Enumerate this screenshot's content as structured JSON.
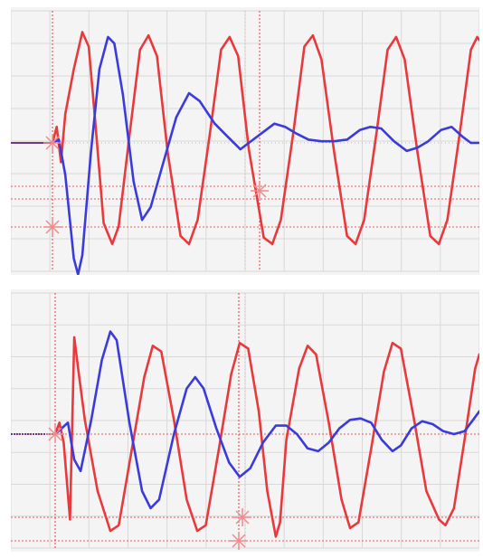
{
  "chart_data": [
    {
      "type": "line",
      "title": "",
      "xlabel": "",
      "ylabel": "",
      "xlim": [
        0,
        10
      ],
      "ylim": [
        -4,
        4
      ],
      "grid": true,
      "legend": "none",
      "series": [
        {
          "color": "#e8393c",
          "points": [
            [
              0,
              0
            ],
            [
              0.1,
              0.5
            ],
            [
              0.2,
              -0.6
            ],
            [
              0.3,
              0.9
            ],
            [
              0.5,
              2.3
            ],
            [
              0.7,
              3.45
            ],
            [
              0.85,
              3.0
            ],
            [
              1.0,
              0.7
            ],
            [
              1.2,
              -2.5
            ],
            [
              1.4,
              -3.15
            ],
            [
              1.55,
              -2.6
            ],
            [
              1.8,
              0.2
            ],
            [
              2.05,
              2.9
            ],
            [
              2.25,
              3.35
            ],
            [
              2.45,
              2.7
            ],
            [
              2.7,
              -0.3
            ],
            [
              3.0,
              -2.9
            ],
            [
              3.2,
              -3.15
            ],
            [
              3.4,
              -2.4
            ],
            [
              3.7,
              0.4
            ],
            [
              3.95,
              2.9
            ],
            [
              4.15,
              3.3
            ],
            [
              4.35,
              2.7
            ],
            [
              4.6,
              -0.2
            ],
            [
              4.95,
              -2.95
            ],
            [
              5.15,
              -3.15
            ],
            [
              5.35,
              -2.4
            ],
            [
              5.65,
              0.4
            ],
            [
              5.9,
              3.0
            ],
            [
              6.1,
              3.35
            ],
            [
              6.3,
              2.6
            ],
            [
              6.6,
              -0.3
            ],
            [
              6.9,
              -2.9
            ],
            [
              7.1,
              -3.15
            ],
            [
              7.3,
              -2.4
            ],
            [
              7.6,
              0.4
            ],
            [
              7.85,
              2.9
            ],
            [
              8.05,
              3.3
            ],
            [
              8.25,
              2.6
            ],
            [
              8.55,
              -0.3
            ],
            [
              8.85,
              -2.9
            ],
            [
              9.05,
              -3.15
            ],
            [
              9.25,
              -2.4
            ],
            [
              9.55,
              0.4
            ],
            [
              9.8,
              2.9
            ],
            [
              9.95,
              3.3
            ],
            [
              10,
              3.2
            ]
          ]
        },
        {
          "color": "#3b3bdb",
          "points": [
            [
              0,
              0
            ],
            [
              0.15,
              0.1
            ],
            [
              0.3,
              -1.0
            ],
            [
              0.5,
              -3.6
            ],
            [
              0.6,
              -4.1
            ],
            [
              0.7,
              -3.5
            ],
            [
              0.9,
              -0.3
            ],
            [
              1.1,
              2.3
            ],
            [
              1.3,
              3.3
            ],
            [
              1.45,
              3.1
            ],
            [
              1.65,
              1.5
            ],
            [
              1.9,
              -1.2
            ],
            [
              2.1,
              -2.4
            ],
            [
              2.3,
              -2.0
            ],
            [
              2.6,
              -0.6
            ],
            [
              2.9,
              0.8
            ],
            [
              3.2,
              1.55
            ],
            [
              3.45,
              1.3
            ],
            [
              3.8,
              0.6
            ],
            [
              4.1,
              0.2
            ],
            [
              4.4,
              -0.2
            ],
            [
              4.6,
              0.0
            ],
            [
              4.9,
              0.3
            ],
            [
              5.2,
              0.6
            ],
            [
              5.45,
              0.5
            ],
            [
              5.7,
              0.3
            ],
            [
              6.0,
              0.1
            ],
            [
              6.3,
              0.05
            ],
            [
              6.6,
              0.05
            ],
            [
              6.9,
              0.1
            ],
            [
              7.2,
              0.4
            ],
            [
              7.45,
              0.5
            ],
            [
              7.7,
              0.45
            ],
            [
              8.0,
              0.05
            ],
            [
              8.3,
              -0.25
            ],
            [
              8.55,
              -0.15
            ],
            [
              8.8,
              0.05
            ],
            [
              9.1,
              0.4
            ],
            [
              9.35,
              0.5
            ],
            [
              9.6,
              0.2
            ],
            [
              9.8,
              0.0
            ],
            [
              10,
              0.0
            ]
          ]
        }
      ]
    },
    {
      "type": "line",
      "title": "",
      "xlabel": "",
      "ylabel": "",
      "xlim": [
        0,
        10
      ],
      "ylim": [
        -4,
        4
      ],
      "grid": true,
      "legend": "none",
      "series": [
        {
          "color": "#e8393c",
          "points": [
            [
              0,
              0
            ],
            [
              0.1,
              0.4
            ],
            [
              0.2,
              -0.3
            ],
            [
              0.35,
              -3.0
            ],
            [
              0.45,
              3.4
            ],
            [
              0.55,
              2.2
            ],
            [
              0.7,
              0.5
            ],
            [
              1.0,
              -2.0
            ],
            [
              1.3,
              -3.4
            ],
            [
              1.5,
              -3.2
            ],
            [
              1.8,
              -0.6
            ],
            [
              2.1,
              2.0
            ],
            [
              2.3,
              3.1
            ],
            [
              2.5,
              2.9
            ],
            [
              2.8,
              0.5
            ],
            [
              3.1,
              -2.3
            ],
            [
              3.35,
              -3.4
            ],
            [
              3.55,
              -3.2
            ],
            [
              3.85,
              -0.6
            ],
            [
              4.15,
              2.1
            ],
            [
              4.35,
              3.2
            ],
            [
              4.55,
              3.0
            ],
            [
              4.8,
              0.8
            ],
            [
              5.0,
              -2.0
            ],
            [
              5.2,
              -3.6
            ],
            [
              5.3,
              -3.1
            ],
            [
              5.45,
              -0.2
            ],
            [
              5.75,
              2.3
            ],
            [
              5.95,
              3.1
            ],
            [
              6.15,
              2.8
            ],
            [
              6.45,
              0.4
            ],
            [
              6.75,
              -2.3
            ],
            [
              6.95,
              -3.3
            ],
            [
              7.15,
              -3.1
            ],
            [
              7.45,
              -0.5
            ],
            [
              7.75,
              2.2
            ],
            [
              7.95,
              3.2
            ],
            [
              8.15,
              3.0
            ],
            [
              8.45,
              0.6
            ],
            [
              8.75,
              -2.0
            ],
            [
              8.9,
              -2.5
            ],
            [
              9.05,
              -3.0
            ],
            [
              9.2,
              -3.2
            ],
            [
              9.4,
              -2.6
            ],
            [
              9.65,
              -0.2
            ],
            [
              9.9,
              2.3
            ],
            [
              10,
              2.8
            ]
          ]
        },
        {
          "color": "#3b3bdb",
          "points": [
            [
              0,
              0
            ],
            [
              0.3,
              0.4
            ],
            [
              0.45,
              -0.9
            ],
            [
              0.6,
              -1.3
            ],
            [
              0.85,
              0.5
            ],
            [
              1.1,
              2.6
            ],
            [
              1.3,
              3.6
            ],
            [
              1.45,
              3.3
            ],
            [
              1.75,
              0.4
            ],
            [
              2.05,
              -2.0
            ],
            [
              2.25,
              -2.6
            ],
            [
              2.45,
              -2.3
            ],
            [
              2.8,
              0.0
            ],
            [
              3.1,
              1.6
            ],
            [
              3.3,
              2.0
            ],
            [
              3.5,
              1.6
            ],
            [
              3.8,
              0.2
            ],
            [
              4.1,
              -1.0
            ],
            [
              4.35,
              -1.5
            ],
            [
              4.6,
              -1.2
            ],
            [
              4.9,
              -0.3
            ],
            [
              5.2,
              0.3
            ],
            [
              5.45,
              0.3
            ],
            [
              5.7,
              0.0
            ],
            [
              5.95,
              -0.5
            ],
            [
              6.2,
              -0.6
            ],
            [
              6.45,
              -0.3
            ],
            [
              6.7,
              0.2
            ],
            [
              6.95,
              0.5
            ],
            [
              7.2,
              0.55
            ],
            [
              7.45,
              0.4
            ],
            [
              7.7,
              -0.2
            ],
            [
              7.95,
              -0.6
            ],
            [
              8.15,
              -0.4
            ],
            [
              8.4,
              0.2
            ],
            [
              8.65,
              0.45
            ],
            [
              8.9,
              0.35
            ],
            [
              9.15,
              0.1
            ],
            [
              9.4,
              0.0
            ],
            [
              9.65,
              0.1
            ],
            [
              9.85,
              0.5
            ],
            [
              10,
              0.8
            ]
          ]
        }
      ]
    }
  ]
}
